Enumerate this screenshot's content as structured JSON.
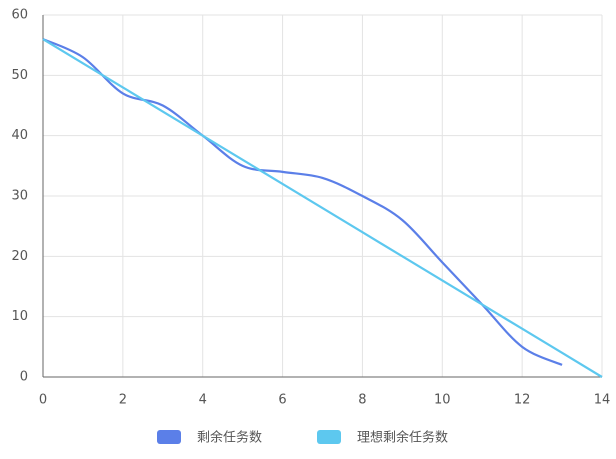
{
  "chart_data": {
    "type": "line",
    "x": [
      0,
      1,
      2,
      3,
      4,
      5,
      6,
      7,
      8,
      9,
      10,
      11,
      12,
      13,
      14
    ],
    "series": [
      {
        "name": "剩余任务数",
        "color": "#5b7fe8",
        "values": [
          56,
          53,
          47,
          45,
          40,
          35,
          34,
          33,
          30,
          26,
          19,
          12,
          5,
          2,
          null
        ],
        "smooth": true
      },
      {
        "name": "理想剩余任务数",
        "color": "#5dc8ef",
        "values": [
          56,
          52,
          48,
          44,
          40,
          36,
          32,
          28,
          24,
          20,
          16,
          12,
          8,
          4,
          0
        ],
        "smooth": false
      }
    ],
    "xlim": [
      0,
      14
    ],
    "xticks": [
      0,
      2,
      4,
      6,
      8,
      10,
      12,
      14
    ],
    "ylim": [
      0,
      60
    ],
    "yticks": [
      0,
      10,
      20,
      30,
      40,
      50,
      60
    ],
    "grid": true,
    "legend": "bottom"
  }
}
